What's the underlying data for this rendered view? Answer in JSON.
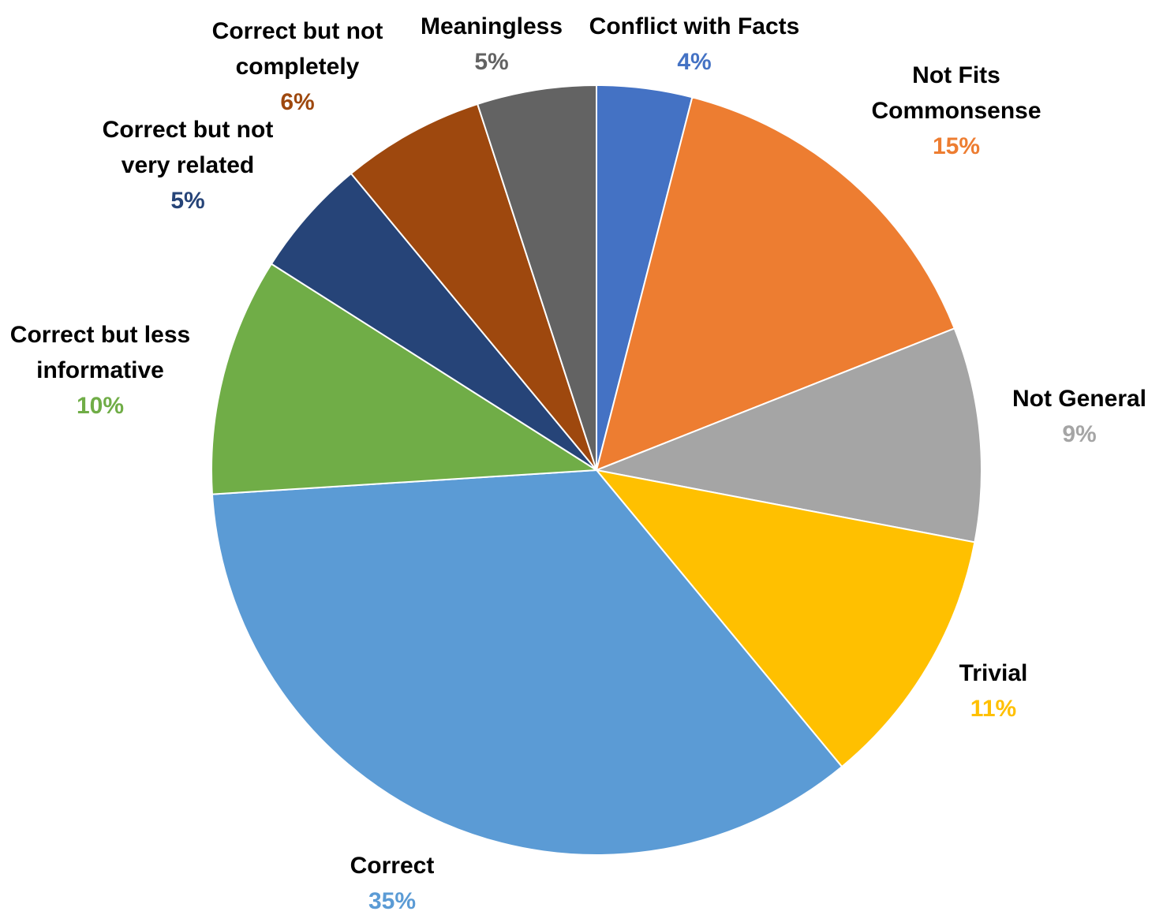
{
  "chart_data": {
    "type": "pie",
    "slices": [
      {
        "label": "Conflict with Facts",
        "value": 4,
        "value_label": "4%",
        "color": "#4472C4"
      },
      {
        "label": "Not Fits Commonsense",
        "value": 15,
        "value_label": "15%",
        "color": "#ED7D31"
      },
      {
        "label": "Not General",
        "value": 9,
        "value_label": "9%",
        "color": "#A5A5A5"
      },
      {
        "label": "Trivial",
        "value": 11,
        "value_label": "11%",
        "color": "#FFC000"
      },
      {
        "label": "Correct",
        "value": 35,
        "value_label": "35%",
        "color": "#5B9BD5"
      },
      {
        "label": "Correct but less informative",
        "value": 10,
        "value_label": "10%",
        "color": "#70AD47"
      },
      {
        "label": "Correct but not very related",
        "value": 5,
        "value_label": "5%",
        "color": "#264478"
      },
      {
        "label": "Correct but not completely",
        "value": 6,
        "value_label": "6%",
        "color": "#9E480E"
      },
      {
        "label": "Meaningless",
        "value": 5,
        "value_label": "5%",
        "color": "#636363"
      }
    ],
    "start_angle": "12 o'clock",
    "direction": "clockwise"
  }
}
